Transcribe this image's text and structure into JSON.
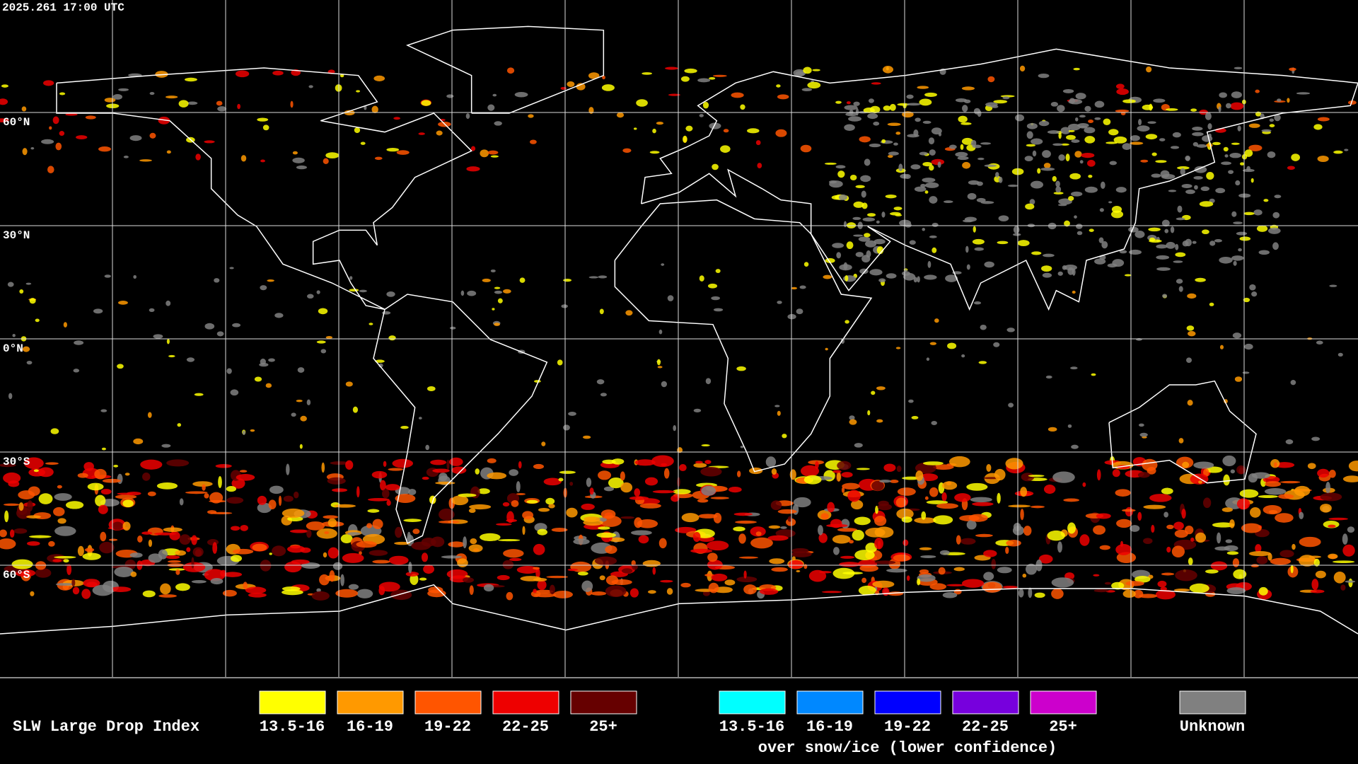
{
  "header": {
    "timestamp": "2025.261 17:00 UTC"
  },
  "grid": {
    "lat_labels": [
      "60°N",
      "30°N",
      "0°N",
      "30°S",
      "60°S"
    ]
  },
  "legend": {
    "title": "SLW Large Drop Index",
    "groups": [
      {
        "items": [
          {
            "label": "13.5-16",
            "color": "#ffff00"
          },
          {
            "label": "16-19",
            "color": "#ff9900"
          },
          {
            "label": "19-22",
            "color": "#ff5500"
          },
          {
            "label": "22-25",
            "color": "#ee0000"
          },
          {
            "label": "25+",
            "color": "#660000"
          }
        ]
      },
      {
        "items": [
          {
            "label": "13.5-16",
            "color": "#00ffff"
          },
          {
            "label": "16-19",
            "color": "#0088ff"
          },
          {
            "label": "19-22",
            "color": "#0000ff"
          },
          {
            "label": "22-25",
            "color": "#7700dd"
          },
          {
            "label": "25+",
            "color": "#cc00cc"
          }
        ],
        "caption": "over snow/ice (lower confidence)"
      },
      {
        "items": [
          {
            "label": "Unknown",
            "color": "#808080"
          }
        ]
      }
    ]
  }
}
